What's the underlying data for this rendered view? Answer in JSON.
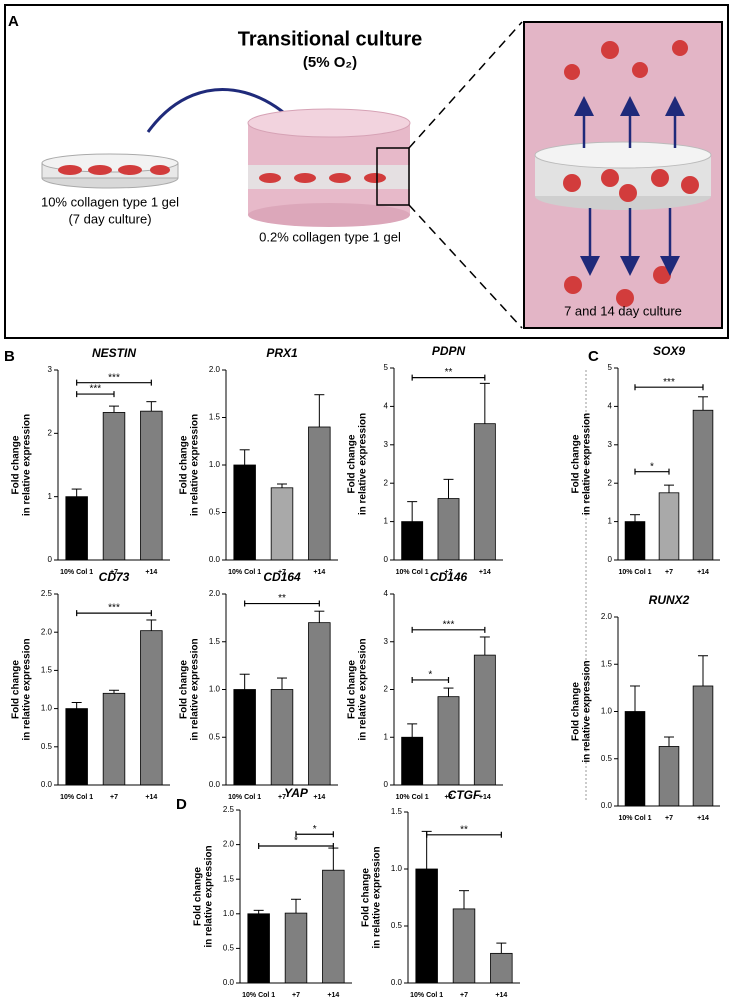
{
  "labels": {
    "a": "A",
    "b": "B",
    "c": "C",
    "d": "D"
  },
  "illustration": {
    "title": "Transitional culture",
    "subtitle": "(5% O₂)",
    "left_gel": "10% collagen type 1 gel",
    "left_gel_days": "(7 day culture)",
    "middle_gel": "0.2% collagen type 1 gel",
    "right_caption": "7 and 14 day culture"
  },
  "chart_data": [
    {
      "type": "bar",
      "title": "NESTIN",
      "ylabel": [
        "Fold change",
        "in relative expression"
      ],
      "categories": [
        "10% Col 1",
        "+7",
        "+14"
      ],
      "values": [
        1,
        2.33,
        2.35
      ],
      "errors": [
        0.12,
        0.1,
        0.15
      ],
      "colors": [
        "#000000",
        "#808080",
        "#808080"
      ],
      "ylim": [
        0,
        3
      ],
      "yticks": [
        0,
        1,
        2,
        3
      ],
      "annotations": [
        {
          "text": "***",
          "from": 0,
          "to": 1,
          "y": 2.62
        },
        {
          "text": "***",
          "from": 0,
          "to": 2,
          "y": 2.8
        }
      ]
    },
    {
      "type": "bar",
      "title": "PRX1",
      "ylabel": [
        "Fold change",
        "in relative expression"
      ],
      "categories": [
        "10% Col 1",
        "+7",
        "+14"
      ],
      "values": [
        1.0,
        0.76,
        1.4
      ],
      "errors": [
        0.16,
        0.04,
        0.34
      ],
      "colors": [
        "#000000",
        "#a9a9a9",
        "#808080"
      ],
      "ylim": [
        0,
        2
      ],
      "yticks": [
        {
          "value": 0,
          "label": "0.0"
        },
        {
          "value": 0.5,
          "label": "0.5"
        },
        {
          "value": 1,
          "label": "1.0"
        },
        {
          "value": 1.5,
          "label": "1.5"
        },
        {
          "value": 2,
          "label": "2.0"
        }
      ],
      "annotations": []
    },
    {
      "type": "bar",
      "title": "PDPN",
      "ylabel": [
        "Fold change",
        "in relative expression"
      ],
      "categories": [
        "10% Col 1",
        "+7",
        "+14"
      ],
      "values": [
        1,
        1.6,
        3.55
      ],
      "errors": [
        0.52,
        0.5,
        1.05
      ],
      "colors": [
        "#000000",
        "#808080",
        "#808080"
      ],
      "ylim": [
        0,
        5
      ],
      "yticks": [
        0,
        1,
        2,
        3,
        4,
        5
      ],
      "annotations": [
        {
          "text": "**",
          "from": 0,
          "to": 2,
          "y": 4.75
        }
      ]
    },
    {
      "type": "bar",
      "title": "SOX9",
      "ylabel": [
        "Fold change",
        "in relative expression"
      ],
      "categories": [
        "10% Col 1",
        "+7",
        "+14"
      ],
      "values": [
        1,
        1.75,
        3.9
      ],
      "errors": [
        0.18,
        0.2,
        0.35
      ],
      "colors": [
        "#000000",
        "#a9a9a9",
        "#808080"
      ],
      "ylim": [
        0,
        5
      ],
      "yticks": [
        0,
        1,
        2,
        3,
        4,
        5
      ],
      "annotations": [
        {
          "text": "*",
          "from": 0,
          "to": 1,
          "y": 2.3
        },
        {
          "text": "***",
          "from": 0,
          "to": 2,
          "y": 4.5
        }
      ]
    },
    {
      "type": "bar",
      "title": "CD73",
      "ylabel": [
        "Fold change",
        "in relative expression"
      ],
      "categories": [
        "10% Col 1",
        "+7",
        "+14"
      ],
      "values": [
        1.0,
        1.2,
        2.02
      ],
      "errors": [
        0.08,
        0.04,
        0.14
      ],
      "colors": [
        "#000000",
        "#808080",
        "#808080"
      ],
      "ylim": [
        0,
        2.5
      ],
      "yticks": [
        {
          "value": 0,
          "label": "0.0"
        },
        {
          "value": 0.5,
          "label": "0.5"
        },
        {
          "value": 1,
          "label": "1.0"
        },
        {
          "value": 1.5,
          "label": "1.5"
        },
        {
          "value": 2,
          "label": "2.0"
        },
        {
          "value": 2.5,
          "label": "2.5"
        }
      ],
      "annotations": [
        {
          "text": "***",
          "from": 0,
          "to": 2,
          "y": 2.25
        }
      ]
    },
    {
      "type": "bar",
      "title": "CD164",
      "ylabel": [
        "Fold change",
        "in relative expression"
      ],
      "categories": [
        "10% Col 1",
        "+7",
        "+14"
      ],
      "values": [
        1.0,
        1.0,
        1.7
      ],
      "errors": [
        0.16,
        0.12,
        0.12
      ],
      "colors": [
        "#000000",
        "#808080",
        "#808080"
      ],
      "ylim": [
        0,
        2
      ],
      "yticks": [
        {
          "value": 0,
          "label": "0.0"
        },
        {
          "value": 0.5,
          "label": "0.5"
        },
        {
          "value": 1,
          "label": "1.0"
        },
        {
          "value": 1.5,
          "label": "1.5"
        },
        {
          "value": 2,
          "label": "2.0"
        }
      ],
      "annotations": [
        {
          "text": "**",
          "from": 0,
          "to": 2,
          "y": 1.9
        }
      ]
    },
    {
      "type": "bar",
      "title": "CD146",
      "ylabel": [
        "Fold change",
        "in relative expression"
      ],
      "categories": [
        "10% Col 1",
        "+7",
        "+14"
      ],
      "values": [
        1,
        1.85,
        2.72
      ],
      "errors": [
        0.28,
        0.18,
        0.38
      ],
      "colors": [
        "#000000",
        "#808080",
        "#808080"
      ],
      "ylim": [
        0,
        4
      ],
      "yticks": [
        0,
        1,
        2,
        3,
        4
      ],
      "annotations": [
        {
          "text": "*",
          "from": 0,
          "to": 1,
          "y": 2.2
        },
        {
          "text": "***",
          "from": 0,
          "to": 2,
          "y": 3.25
        }
      ]
    },
    {
      "type": "bar",
      "title": "RUNX2",
      "ylabel": [
        "Fold change",
        "in relative expression"
      ],
      "categories": [
        "10% Col 1",
        "+7",
        "+14"
      ],
      "values": [
        1.0,
        0.63,
        1.27
      ],
      "errors": [
        0.27,
        0.1,
        0.32
      ],
      "colors": [
        "#000000",
        "#808080",
        "#808080"
      ],
      "ylim": [
        0,
        2
      ],
      "yticks": [
        {
          "value": 0,
          "label": "0.0"
        },
        {
          "value": 0.5,
          "label": "0.5"
        },
        {
          "value": 1,
          "label": "1.0"
        },
        {
          "value": 1.5,
          "label": "1.5"
        },
        {
          "value": 2,
          "label": "2.0"
        }
      ],
      "annotations": []
    },
    {
      "type": "bar",
      "title": "YAP",
      "ylabel": [
        "Fold change",
        "in relative expression"
      ],
      "categories": [
        "10% Col 1",
        "+7",
        "+14"
      ],
      "values": [
        1.0,
        1.01,
        1.63
      ],
      "errors": [
        0.05,
        0.2,
        0.32
      ],
      "colors": [
        "#000000",
        "#808080",
        "#808080"
      ],
      "ylim": [
        0,
        2.5
      ],
      "yticks": [
        {
          "value": 0,
          "label": "0.0"
        },
        {
          "value": 0.5,
          "label": "0.5"
        },
        {
          "value": 1,
          "label": "1.0"
        },
        {
          "value": 1.5,
          "label": "1.5"
        },
        {
          "value": 2,
          "label": "2.0"
        },
        {
          "value": 2.5,
          "label": "2.5"
        }
      ],
      "annotations": [
        {
          "text": "*",
          "from": 1,
          "to": 2,
          "y": 2.15
        },
        {
          "text": "*",
          "from": 0,
          "to": 2,
          "y": 1.98
        }
      ]
    },
    {
      "type": "bar",
      "title": "CTGF",
      "ylabel": [
        "Fold change",
        "in relative expression"
      ],
      "categories": [
        "10% Col 1",
        "+7",
        "+14"
      ],
      "values": [
        1.0,
        0.65,
        0.26
      ],
      "errors": [
        0.33,
        0.16,
        0.09
      ],
      "colors": [
        "#000000",
        "#808080",
        "#808080"
      ],
      "ylim": [
        0,
        1.5
      ],
      "yticks": [
        {
          "value": 0,
          "label": "0.0"
        },
        {
          "value": 0.5,
          "label": "0.5"
        },
        {
          "value": 1,
          "label": "1.0"
        },
        {
          "value": 1.5,
          "label": "1.5"
        }
      ],
      "annotations": [
        {
          "text": "**",
          "from": 0,
          "to": 2,
          "y": 1.3
        }
      ]
    }
  ]
}
